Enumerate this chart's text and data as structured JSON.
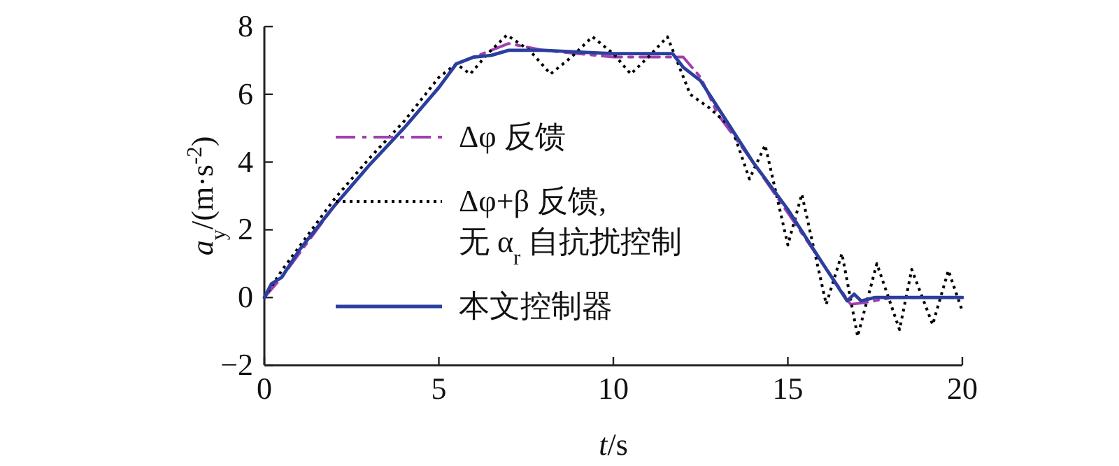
{
  "chart_data": {
    "type": "line",
    "xlabel": "*t*/s",
    "ylabel": "*a*$_{y}$/(m·s$^{-2}$)",
    "xlim": [
      0,
      20
    ],
    "ylim": [
      -2,
      8
    ],
    "xticks": [
      0,
      5,
      10,
      15,
      20
    ],
    "yticks": [
      -2,
      0,
      2,
      4,
      6,
      8
    ],
    "legend": "left",
    "grid": false,
    "series": [
      {
        "name": "Δφ 反馈",
        "color": "#a040b0",
        "line_style": "dashdot",
        "x": [
          0,
          0.5,
          1,
          2,
          3,
          4,
          5,
          5.5,
          6,
          6.5,
          7,
          8,
          9,
          10,
          11,
          12,
          12.5,
          13,
          14,
          15,
          16,
          16.8,
          17.2,
          18,
          20
        ],
        "values": [
          0,
          0.6,
          1.3,
          2.7,
          3.9,
          5.0,
          6.2,
          6.9,
          7.1,
          7.3,
          7.5,
          7.3,
          7.2,
          7.1,
          7.1,
          7.1,
          6.5,
          5.4,
          4.0,
          2.5,
          1.0,
          -0.2,
          -0.15,
          0,
          0
        ]
      },
      {
        "name": "Δφ+β 反馈,\n无 α$_{r}$ 自抗扰控制",
        "color": "#000000",
        "line_style": "dotted",
        "x": [
          0,
          0.5,
          1,
          2,
          3,
          4,
          5,
          5.5,
          5.9,
          6.4,
          6.95,
          7.6,
          8.2,
          8.8,
          9.4,
          10,
          10.5,
          11,
          11.55,
          12.2,
          12.75,
          13.4,
          13.9,
          14.35,
          15,
          15.4,
          16.1,
          16.55,
          17,
          17.55,
          18.2,
          18.55,
          19.15,
          19.6,
          20
        ],
        "values": [
          0,
          0.8,
          1.5,
          2.9,
          4.1,
          5.2,
          6.5,
          6.9,
          6.6,
          7.2,
          7.75,
          7.3,
          6.6,
          7.1,
          7.7,
          7.2,
          6.6,
          7.1,
          7.7,
          6.0,
          5.6,
          5.0,
          3.5,
          4.5,
          1.55,
          3.05,
          -0.2,
          1.3,
          -1.15,
          1.0,
          -0.95,
          0.83,
          -0.8,
          0.8,
          -0.4
        ]
      },
      {
        "name": "本文控制器",
        "color": "#2b3f9e",
        "line_style": "solid",
        "x": [
          0,
          0.2,
          0.5,
          1,
          2,
          3,
          4,
          5,
          5.5,
          6,
          6.5,
          7,
          8,
          9,
          10,
          11,
          11.7,
          12,
          12.5,
          13,
          14,
          15,
          16,
          16.7,
          16.9,
          17.1,
          17.5,
          18,
          20
        ],
        "values": [
          0,
          0.4,
          0.6,
          1.4,
          2.7,
          3.9,
          5.0,
          6.2,
          6.9,
          7.1,
          7.15,
          7.3,
          7.3,
          7.25,
          7.2,
          7.2,
          7.2,
          6.8,
          6.4,
          5.6,
          4.0,
          2.6,
          1.0,
          -0.1,
          0.1,
          -0.1,
          0,
          0,
          0
        ]
      }
    ]
  }
}
